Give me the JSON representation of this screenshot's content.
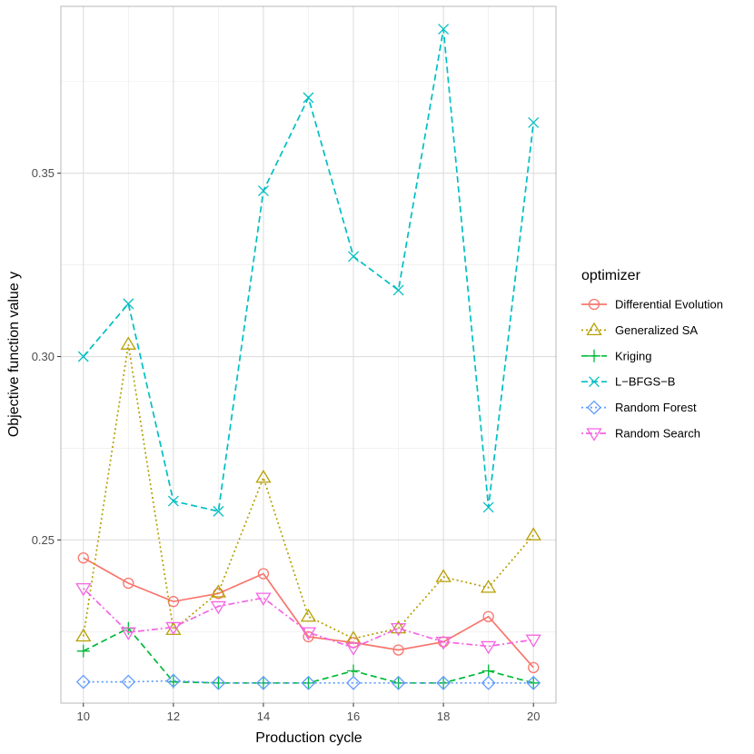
{
  "chart_data": {
    "type": "line",
    "title": "",
    "xlabel": "Production cycle",
    "ylabel": "Objective function value y",
    "x": [
      10,
      11,
      12,
      13,
      14,
      15,
      16,
      17,
      18,
      19,
      20
    ],
    "xlim": [
      9.5,
      20.5
    ],
    "ylim": [
      0.2055,
      0.3955
    ],
    "xticks": [
      10,
      12,
      14,
      16,
      18,
      20
    ],
    "yticks": [
      0.25,
      0.3,
      0.35
    ],
    "ytick_labels": [
      "0.25",
      "0.30",
      "0.35"
    ],
    "grid": true,
    "legend_title": "optimizer",
    "legend_position": "right",
    "series": [
      {
        "name": "Differential Evolution",
        "color": "#F8766D",
        "dash": "solid",
        "marker": "circle",
        "values": [
          0.2451,
          0.2382,
          0.2332,
          0.2354,
          0.2408,
          0.2236,
          0.222,
          0.22,
          0.2222,
          0.2291,
          0.2152
        ]
      },
      {
        "name": "Generalized SA",
        "color": "#B79F00",
        "dash": "dotted",
        "marker": "triangle",
        "values": [
          0.2237,
          0.3033,
          0.2255,
          0.2357,
          0.267,
          0.2291,
          0.2231,
          0.2259,
          0.2399,
          0.237,
          0.2513
        ]
      },
      {
        "name": "Kriging",
        "color": "#00BA38",
        "dash": "dashed",
        "marker": "plus",
        "values": [
          0.2197,
          0.2259,
          0.2113,
          0.211,
          0.211,
          0.211,
          0.2143,
          0.211,
          0.211,
          0.2143,
          0.211
        ]
      },
      {
        "name": "L−BFGS−B",
        "color": "#00BFC4",
        "dash": "dashed",
        "marker": "cross",
        "values": [
          0.3,
          0.3144,
          0.2606,
          0.2578,
          0.3452,
          0.3706,
          0.3273,
          0.3181,
          0.3893,
          0.2589,
          0.3638
        ]
      },
      {
        "name": "Random Forest",
        "color": "#619CFF",
        "dash": "dotted",
        "marker": "diamond",
        "values": [
          0.2113,
          0.2113,
          0.2116,
          0.211,
          0.211,
          0.211,
          0.211,
          0.211,
          0.211,
          0.211,
          0.211
        ]
      },
      {
        "name": "Random Search",
        "color": "#F564E3",
        "dash": "dotdash",
        "marker": "triangle-down",
        "values": [
          0.2368,
          0.2248,
          0.2262,
          0.2319,
          0.2342,
          0.2248,
          0.2206,
          0.2259,
          0.2222,
          0.221,
          0.2228
        ]
      }
    ]
  }
}
